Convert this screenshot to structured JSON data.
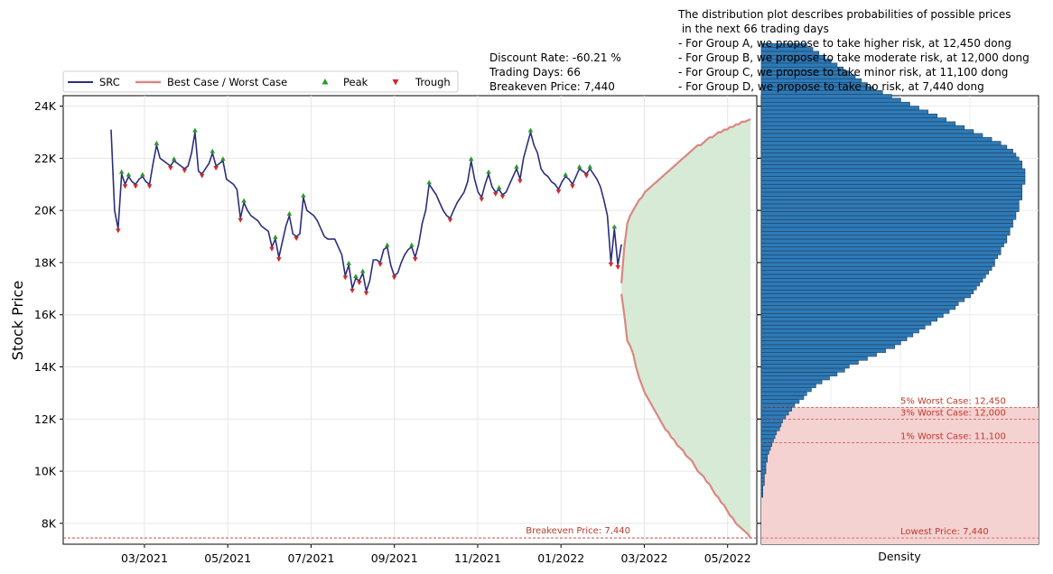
{
  "chart_data": [
    {
      "type": "line",
      "ylabel": "Stock Price",
      "ylim": [
        7200,
        24400
      ],
      "y_ticks": [
        8000,
        10000,
        12000,
        14000,
        16000,
        18000,
        20000,
        22000,
        24000
      ],
      "y_tick_labels": [
        "8K",
        "10K",
        "12K",
        "14K",
        "16K",
        "18K",
        "20K",
        "22K",
        "24K"
      ],
      "x_tick_labels": [
        "03/2021",
        "05/2021",
        "07/2021",
        "09/2021",
        "11/2021",
        "01/2022",
        "03/2022",
        "05/2022"
      ],
      "grid": true,
      "legend_position": "top-left",
      "legend": [
        "SRC",
        "Best Case / Worst Case",
        "Peak",
        "Trough"
      ],
      "series": [
        {
          "name": "SRC",
          "color": "#2b2f7a",
          "values": [
            23100,
            20000,
            19300,
            21400,
            21000,
            21300,
            21100,
            21000,
            21200,
            21300,
            21100,
            21000,
            21800,
            22500,
            22000,
            21900,
            21800,
            21700,
            21900,
            21800,
            21700,
            21600,
            21700,
            22200,
            23000,
            21500,
            21400,
            21600,
            21800,
            22200,
            21700,
            21800,
            21900,
            21200,
            21100,
            21000,
            20800,
            19700,
            20300,
            20000,
            19800,
            19700,
            19600,
            19400,
            19300,
            19200,
            18600,
            18900,
            18200,
            18800,
            19400,
            19800,
            19100,
            19000,
            19100,
            20500,
            20000,
            19900,
            19800,
            19600,
            19300,
            19000,
            18900,
            18900,
            18900,
            18600,
            18300,
            17500,
            17900,
            17000,
            17400,
            17300,
            17600,
            16900,
            17300,
            18100,
            18100,
            18000,
            18500,
            18600,
            17900,
            17500,
            17600,
            18000,
            18300,
            18500,
            18600,
            18200,
            18700,
            19500,
            20000,
            21000,
            20800,
            20600,
            20300,
            20000,
            19800,
            19700,
            20000,
            20300,
            20500,
            20700,
            21100,
            21900,
            21200,
            20700,
            20500,
            21000,
            21400,
            20900,
            20700,
            20800,
            20600,
            20700,
            21000,
            21300,
            21600,
            21200,
            22000,
            22500,
            23000,
            22500,
            22200,
            21600,
            21400,
            21300,
            21100,
            21000,
            20800,
            21100,
            21300,
            21200,
            21000,
            21300,
            21600,
            21500,
            21400,
            21600,
            21400,
            21200,
            20900,
            20400,
            19800,
            18000,
            19300,
            17900,
            18700
          ]
        },
        {
          "name": "Best Case / Worst Case",
          "color": "#d98880",
          "best": [
            17200,
            18600,
            19500,
            19800,
            20000,
            20200,
            20400,
            20500,
            20700,
            20800,
            20900,
            21000,
            21100,
            21200,
            21300,
            21400,
            21500,
            21600,
            21700,
            21800,
            21900,
            22000,
            22100,
            22200,
            22300,
            22400,
            22500,
            22500,
            22600,
            22700,
            22800,
            22800,
            22900,
            23000,
            23000,
            23100,
            23100,
            23200,
            23200,
            23300,
            23300,
            23400,
            23400,
            23450,
            23500
          ],
          "worst": [
            16800,
            16000,
            15000,
            14800,
            14500,
            14000,
            13600,
            13300,
            13000,
            12800,
            12600,
            12400,
            12200,
            12000,
            11800,
            11600,
            11500,
            11300,
            11200,
            11000,
            10900,
            10800,
            10600,
            10500,
            10400,
            10200,
            10000,
            9900,
            9800,
            9600,
            9500,
            9300,
            9100,
            9000,
            8800,
            8700,
            8500,
            8300,
            8200,
            8000,
            7900,
            7800,
            7700,
            7600,
            7440
          ]
        }
      ],
      "annotations": {
        "breakeven_line_value": 7440,
        "breakeven_label": "Breakeven Price: 7,440",
        "info_lines": [
          "Discount Rate: -60.21 %",
          "Trading Days: 66",
          "Breakeven Price: 7,440"
        ]
      },
      "colors": {
        "price_line": "#2b2f7a",
        "projection": "#d98880",
        "fill": "#d6ead6",
        "peak": "#2a9a2a",
        "trough": "#d62728",
        "breakeven": "#c0392b"
      }
    },
    {
      "type": "bar",
      "orientation": "horizontal",
      "xlabel": "Density",
      "ylim": [
        7200,
        24400
      ],
      "bin_start": 9000,
      "bin_width": 150,
      "values": [
        1,
        1,
        1,
        2,
        2,
        2,
        3,
        3,
        3,
        4,
        4,
        5,
        6,
        7,
        8,
        9,
        10,
        12,
        13,
        14,
        16,
        18,
        20,
        22,
        25,
        28,
        30,
        33,
        36,
        40,
        45,
        50,
        55,
        58,
        64,
        70,
        76,
        82,
        88,
        92,
        96,
        100,
        104,
        108,
        112,
        116,
        120,
        124,
        128,
        130,
        134,
        138,
        140,
        142,
        144,
        146,
        148,
        150,
        152,
        154,
        154,
        156,
        158,
        158,
        160,
        162,
        162,
        164,
        164,
        166,
        166,
        168,
        168,
        170,
        170,
        170,
        172,
        172,
        172,
        172,
        174,
        174,
        174,
        174,
        172,
        172,
        170,
        168,
        166,
        162,
        158,
        152,
        146,
        140,
        134,
        128,
        122,
        116,
        110,
        104,
        98,
        92,
        86,
        80,
        74,
        70,
        66,
        62,
        58,
        54,
        50,
        46,
        42,
        38,
        34,
        30
      ],
      "color": "#2e7ab7",
      "annotations": [
        {
          "label": "5% Worst Case: 12,450",
          "value": 12450
        },
        {
          "label": "3% Worst Case: 12,000",
          "value": 12000
        },
        {
          "label": "1% Worst Case: 11,100",
          "value": 11100
        },
        {
          "label": "Lowest Price: 7,440",
          "value": 7440
        }
      ],
      "description_lines": [
        "The distribution plot describes probabilities of possible prices",
        " in the next 66 trading days",
        "- For Group A, we propose to take higher risk, at 12,450 dong",
        "- For Group B, we propose to take moderate risk, at 12,000 dong",
        "- For Group C, we propose to take minor risk, at 11,100 dong",
        "- For Group D, we propose to take no risk, at 7,440 dong"
      ]
    }
  ]
}
